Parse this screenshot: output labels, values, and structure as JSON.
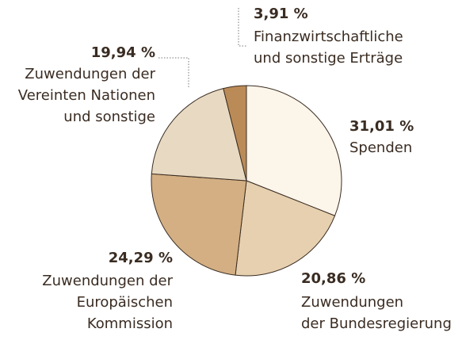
{
  "chart_data": {
    "type": "pie",
    "categories": [
      [
        "Spenden"
      ],
      [
        "Zuwendungen",
        "der Bundesregierung"
      ],
      [
        "Zuwendungen der",
        "Europäischen",
        "Kommission"
      ],
      [
        "Zuwendungen der",
        "Vereinten Nationen",
        "und sonstige"
      ],
      [
        "Finanzwirtschaftliche",
        "und sonstige Erträge"
      ]
    ],
    "values": [
      31.01,
      20.86,
      24.29,
      19.94,
      3.91
    ],
    "value_labels": [
      "31,01 %",
      "20,86 %",
      "24,29 %",
      "19,94 %",
      "3,91 %"
    ],
    "colors": [
      "#fcf5ea",
      "#e6d0af",
      "#d3af83",
      "#e8dac2",
      "#bb8b57"
    ]
  }
}
